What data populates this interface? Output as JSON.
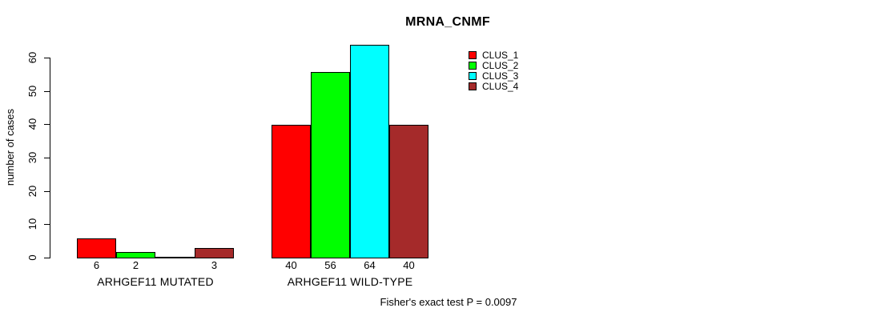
{
  "page": {
    "background": "#FFFFFF"
  },
  "chart_data": {
    "type": "bar",
    "title": "MRNA_CNMF",
    "xlabel": "",
    "ylabel": "number of cases",
    "ylim": [
      0,
      60
    ],
    "yticks": [
      0,
      10,
      20,
      30,
      40,
      50,
      60
    ],
    "grid": false,
    "bar_border_color": "#000000",
    "categories": [
      "ARHGEF11 MUTATED",
      "ARHGEF11 WILD-TYPE"
    ],
    "series": [
      {
        "name": "CLUS_1",
        "color": "#FF0000",
        "values": [
          6,
          40
        ]
      },
      {
        "name": "CLUS_2",
        "color": "#00FF00",
        "values": [
          2,
          56
        ]
      },
      {
        "name": "CLUS_3",
        "color": "#00FFFF",
        "values": [
          0,
          64
        ]
      },
      {
        "name": "CLUS_4",
        "color": "#A52A2A",
        "values": [
          3,
          40
        ]
      }
    ],
    "bar_value_labels": [
      [
        "6",
        "2",
        "",
        "3"
      ],
      [
        "40",
        "56",
        "64",
        "40"
      ]
    ],
    "legend": {
      "position": "top-right",
      "entries": [
        "CLUS_1",
        "CLUS_2",
        "CLUS_3",
        "CLUS_4"
      ]
    },
    "annotation": "Fisher's exact test P = 0.0097"
  }
}
